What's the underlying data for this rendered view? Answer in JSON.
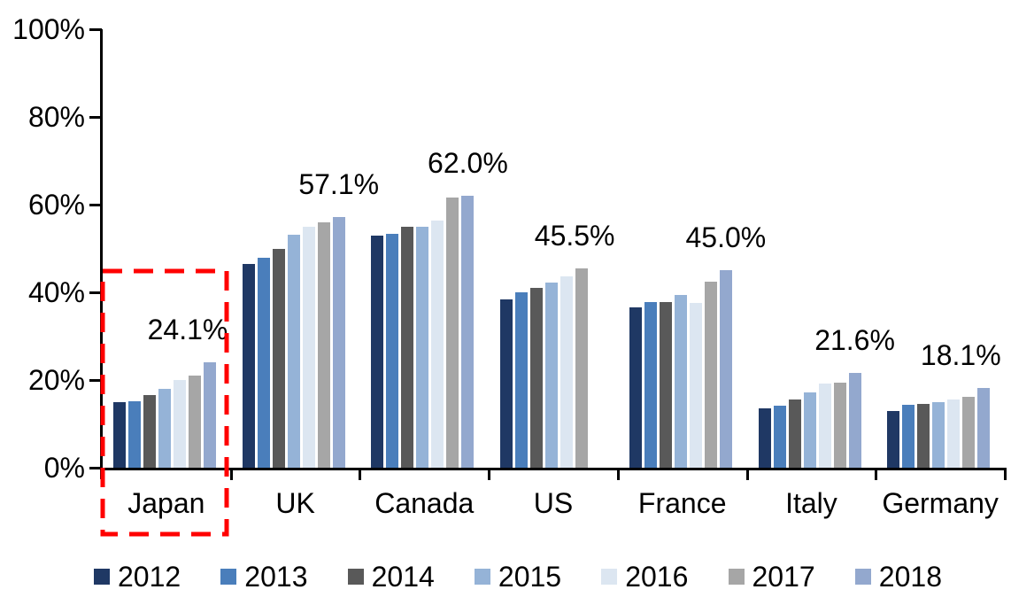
{
  "chart_data": {
    "type": "bar",
    "title": "",
    "xlabel": "",
    "ylabel": "",
    "categories": [
      "Japan",
      "UK",
      "Canada",
      "US",
      "France",
      "Italy",
      "Germany"
    ],
    "series": [
      {
        "name": "2012",
        "color": "#1F3864",
        "values": [
          14.9,
          46.4,
          53.0,
          38.4,
          36.6,
          13.5,
          12.9
        ]
      },
      {
        "name": "2013",
        "color": "#4A7EBB",
        "values": [
          15.1,
          47.8,
          53.4,
          40.1,
          37.8,
          14.2,
          14.3
        ]
      },
      {
        "name": "2014",
        "color": "#595959",
        "values": [
          16.6,
          50.0,
          55.0,
          41.1,
          37.7,
          15.6,
          14.6
        ]
      },
      {
        "name": "2015",
        "color": "#95B3D7",
        "values": [
          18.0,
          53.2,
          54.9,
          42.2,
          39.3,
          17.1,
          15.0
        ]
      },
      {
        "name": "2016",
        "color": "#DCE6F1",
        "values": [
          20.0,
          55.0,
          56.3,
          43.7,
          37.5,
          19.2,
          15.5
        ]
      },
      {
        "name": "2017",
        "color": "#A6A6A6",
        "values": [
          21.1,
          56.0,
          61.7,
          45.5,
          42.4,
          19.4,
          16.1
        ]
      },
      {
        "name": "2018",
        "color": "#93A8CE",
        "values": [
          24.1,
          57.1,
          62.0,
          null,
          45.0,
          21.6,
          18.1
        ]
      }
    ],
    "value_labels": [
      "24.1%",
      "57.1%",
      "62.0%",
      "45.5%",
      "45.0%",
      "21.6%",
      "18.1%"
    ],
    "y_axis": {
      "min": 0,
      "max": 100,
      "tick_step": 20,
      "tick_labels": [
        "0%",
        "20%",
        "40%",
        "60%",
        "80%",
        "100%"
      ]
    },
    "grid": false,
    "legend": {
      "position": "bottom",
      "entries": [
        "2012",
        "2013",
        "2014",
        "2015",
        "2016",
        "2017",
        "2018"
      ]
    },
    "annotation": {
      "shape": "dashed-rectangle",
      "highlights": "Japan",
      "color": "#FF0000"
    }
  }
}
